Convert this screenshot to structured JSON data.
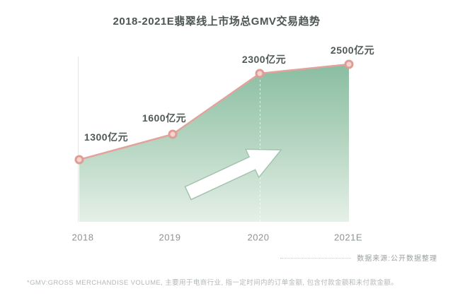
{
  "title": "2018-2021E翡翠线上市场总GMV交易趋势",
  "chart_data": {
    "type": "area",
    "categories": [
      "2018",
      "2019",
      "2020",
      "2021E"
    ],
    "values": [
      1300,
      1600,
      2300,
      2500
    ],
    "unit": "亿元",
    "point_labels": [
      "1300亿元",
      "1600亿元",
      "2300亿元",
      "2500亿元"
    ],
    "title": "2018-2021E翡翠线上市场总GMV交易趋势",
    "xlabel": "",
    "ylabel": "",
    "ylim": [
      0,
      2700
    ],
    "grid": false,
    "legend": false,
    "annotations": [
      "upward-trend-arrow"
    ],
    "colors": {
      "line": "#e2a39c",
      "marker_fill": "#f5d3ce",
      "marker_stroke": "#df9d96",
      "area_top": "#87bc9f",
      "area_mid": "#b5d5c1",
      "area_bottom": "#e7f1e9",
      "axis": "#e5e7e5",
      "arrow_fill": "#ffffff",
      "arrow_stroke": "#a3c4af"
    }
  },
  "source_note": "数据来源:公开数据整理",
  "footnote": "*GMV:GROSS MERCHANDISE VOLUME, 主要用于电商行业, 指一定时间内的订单金额, 包含付款金额和未付款金额。"
}
